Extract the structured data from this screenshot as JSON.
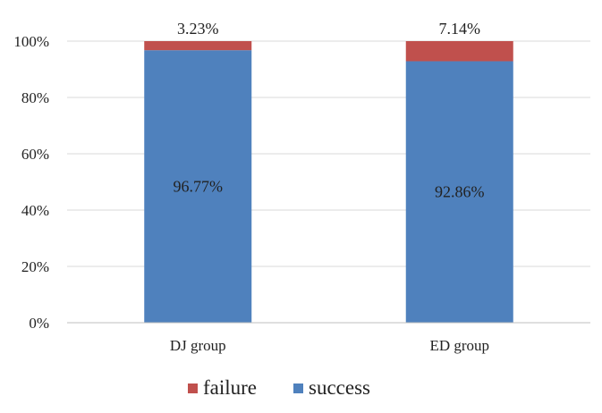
{
  "chart_data": {
    "type": "bar",
    "stacked": true,
    "percent": true,
    "categories": [
      "DJ group",
      "ED group"
    ],
    "series": [
      {
        "name": "success",
        "values": [
          96.77,
          92.86
        ],
        "color": "#4f81bd",
        "labels": [
          "96.77%",
          "92.86%"
        ]
      },
      {
        "name": "failure",
        "values": [
          3.23,
          7.14
        ],
        "color": "#c0504d",
        "labels": [
          "3.23%",
          "7.14%"
        ]
      }
    ],
    "ylim": [
      0,
      100
    ],
    "yticks": [
      0,
      20,
      40,
      60,
      80,
      100
    ],
    "ytick_labels": [
      "0%",
      "20%",
      "40%",
      "60%",
      "80%",
      "100%"
    ],
    "grid": true,
    "legend": {
      "position": "bottom",
      "order": [
        "failure",
        "success"
      ]
    }
  }
}
